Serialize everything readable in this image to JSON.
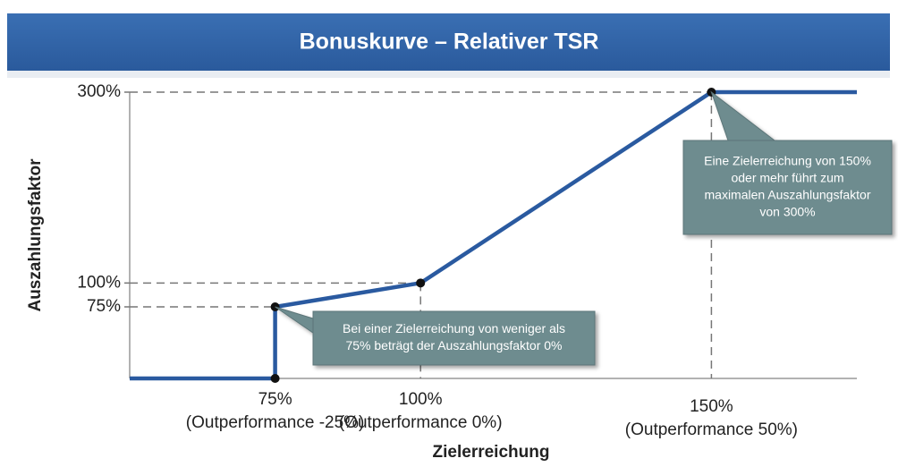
{
  "chart_data": {
    "type": "line",
    "title": "Bonuskurve – Relativer TSR",
    "xlabel": "Zielerreichung",
    "ylabel": "Auszahlungsfaktor",
    "x": [
      50,
      75,
      75,
      100,
      150,
      175
    ],
    "series": [
      {
        "name": "Bonuskurve",
        "color": "#2a5aa0",
        "values": [
          0,
          0,
          75,
          100,
          300,
          300
        ]
      }
    ],
    "xlim": [
      50,
      175
    ],
    "ylim": [
      0,
      300
    ],
    "xticks": [
      {
        "value": 75,
        "label": "75%"
      },
      {
        "value": 100,
        "label": "100%"
      },
      {
        "value": 150,
        "label": "150%"
      }
    ],
    "xtick_sublabels": [
      "(Outperformance -25%)",
      "(Outperformance 0%)",
      "(Outperformance 50%)"
    ],
    "yticks": [
      {
        "value": 75,
        "label": "75%"
      },
      {
        "value": 100,
        "label": "100%"
      },
      {
        "value": 300,
        "label": "300%"
      }
    ],
    "annotations": [
      {
        "lines": [
          "Bei einer Zielerreichung von weniger als",
          "75% beträgt der Auszahlungsfaktor 0%"
        ]
      },
      {
        "lines": [
          "Eine Zielerreichung von 150%",
          "oder mehr führt zum",
          "maximalen Auszahlungsfaktor",
          "von 300%"
        ]
      }
    ]
  }
}
